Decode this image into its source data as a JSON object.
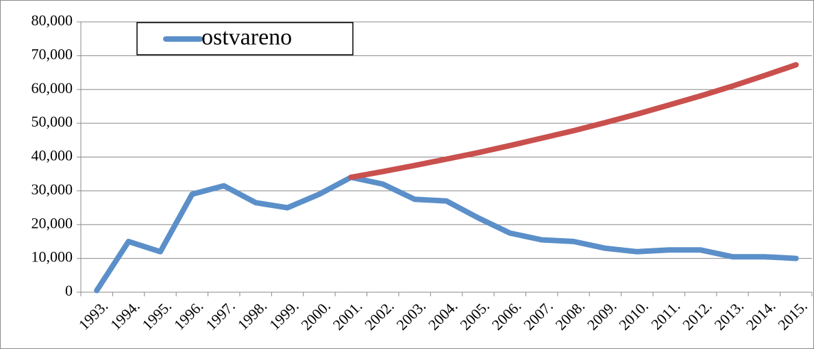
{
  "chart_data": {
    "type": "line",
    "categories": [
      "1993.",
      "1994.",
      "1995.",
      "1996.",
      "1997.",
      "1998.",
      "1999.",
      "2000.",
      "2001.",
      "2002.",
      "2003.",
      "2004.",
      "2005.",
      "2006.",
      "2007.",
      "2008.",
      "2009.",
      "2010.",
      "2011.",
      "2012.",
      "2013.",
      "2014.",
      "2015."
    ],
    "series": [
      {
        "name": "ostvareno",
        "color": "#5b8fc9",
        "values": [
          500,
          15000,
          12000,
          29000,
          31500,
          26500,
          25000,
          29000,
          34000,
          32000,
          27500,
          27000,
          22000,
          17500,
          15500,
          15000,
          13000,
          12000,
          12500,
          12500,
          10500,
          10500,
          10000
        ]
      },
      {
        "color": "#c9504d",
        "values": [
          null,
          null,
          null,
          null,
          null,
          null,
          null,
          null,
          34000,
          35700,
          37500,
          39400,
          41300,
          43400,
          45600,
          47800,
          50200,
          52700,
          55400,
          58100,
          61000,
          64100,
          67300
        ]
      }
    ],
    "ylim": [
      0,
      80000
    ],
    "yticks": [
      0,
      {
        "value": 10000,
        "label": "10,000"
      },
      {
        "value": 20000,
        "label": "20,000"
      },
      {
        "value": 30000,
        "label": "30,000"
      },
      {
        "value": 40000,
        "label": "40,000"
      },
      {
        "value": 50000,
        "label": "50,000"
      },
      {
        "value": 60000,
        "label": "60,000"
      },
      {
        "value": 70000,
        "label": "70,000"
      },
      {
        "value": 80000,
        "label": "80,000"
      }
    ],
    "grid": true,
    "legend": "top-left"
  }
}
